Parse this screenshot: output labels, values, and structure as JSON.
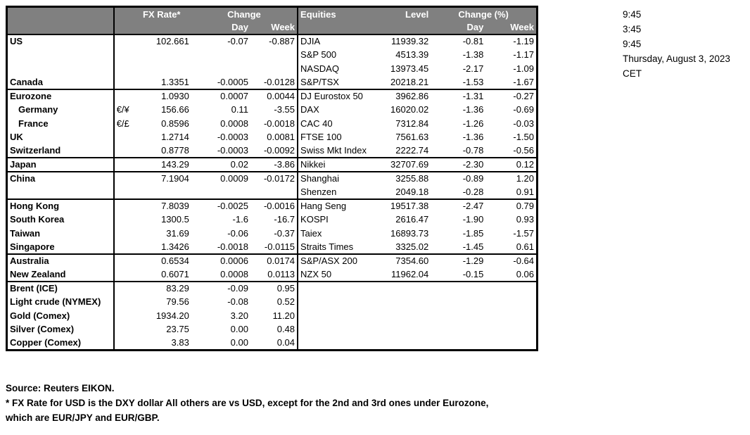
{
  "table": {
    "fx_header": {
      "rate": "FX Rate*",
      "change": "Change",
      "day": "Day",
      "week": "Week"
    },
    "eq_header": {
      "title": "Equities",
      "level": "Level",
      "change": "Change (%)",
      "day": "Day",
      "week": "Week"
    },
    "rows": [
      {
        "label": "US",
        "indent": false,
        "pair": "",
        "rate": "102.661",
        "day": "-0.07",
        "week": "-0.887",
        "eq": "DJIA",
        "level": "11939.32",
        "eq_day": "-0.81",
        "eq_week": "-1.19",
        "section_start": false
      },
      {
        "label": "",
        "indent": false,
        "pair": "",
        "rate": "",
        "day": "",
        "week": "",
        "eq": "S&P 500",
        "level": "4513.39",
        "eq_day": "-1.38",
        "eq_week": "-1.17",
        "section_start": false
      },
      {
        "label": "",
        "indent": false,
        "pair": "",
        "rate": "",
        "day": "",
        "week": "",
        "eq": "NASDAQ",
        "level": "13973.45",
        "eq_day": "-2.17",
        "eq_week": "-1.09",
        "section_start": false
      },
      {
        "label": "Canada",
        "indent": false,
        "pair": "",
        "rate": "1.3351",
        "day": "-0.0005",
        "week": "-0.0128",
        "eq": "S&P/TSX",
        "level": "20218.21",
        "eq_day": "-1.53",
        "eq_week": "-1.67",
        "section_start": false
      },
      {
        "label": "Eurozone",
        "indent": false,
        "pair": "",
        "rate": "1.0930",
        "day": "0.0007",
        "week": "0.0044",
        "eq": "DJ Eurostox 50",
        "level": "3962.86",
        "eq_day": "-1.31",
        "eq_week": "-0.27",
        "section_start": true
      },
      {
        "label": "Germany",
        "indent": true,
        "pair": "€/¥",
        "rate": "156.66",
        "day": "0.11",
        "week": "-3.55",
        "eq": "DAX",
        "level": "16020.02",
        "eq_day": "-1.36",
        "eq_week": "-0.69",
        "section_start": false
      },
      {
        "label": "France",
        "indent": true,
        "pair": "€/£",
        "rate": "0.8596",
        "day": "0.0008",
        "week": "-0.0018",
        "eq": "CAC 40",
        "level": "7312.84",
        "eq_day": "-1.26",
        "eq_week": "-0.03",
        "section_start": false
      },
      {
        "label": "UK",
        "indent": false,
        "pair": "",
        "rate": "1.2714",
        "day": "-0.0003",
        "week": "0.0081",
        "eq": "FTSE 100",
        "level": "7561.63",
        "eq_day": "-1.36",
        "eq_week": "-1.50",
        "section_start": false
      },
      {
        "label": "Switzerland",
        "indent": false,
        "pair": "",
        "rate": "0.8778",
        "day": "-0.0003",
        "week": "-0.0092",
        "eq": "Swiss Mkt Index",
        "level": "2222.74",
        "eq_day": "-0.78",
        "eq_week": "-0.56",
        "section_start": false
      },
      {
        "label": "Japan",
        "indent": false,
        "pair": "",
        "rate": "143.29",
        "day": "0.02",
        "week": "-3.86",
        "eq": "Nikkei",
        "level": "32707.69",
        "eq_day": "-2.30",
        "eq_week": "0.12",
        "section_start": true
      },
      {
        "label": "China",
        "indent": false,
        "pair": "",
        "rate": "7.1904",
        "day": "0.0009",
        "week": "-0.0172",
        "eq": "Shanghai",
        "level": "3255.88",
        "eq_day": "-0.89",
        "eq_week": "1.20",
        "section_start": true
      },
      {
        "label": "",
        "indent": false,
        "pair": "",
        "rate": "",
        "day": "",
        "week": "",
        "eq": "Shenzen",
        "level": "2049.18",
        "eq_day": "-0.28",
        "eq_week": "0.91",
        "section_start": false
      },
      {
        "label": "Hong Kong",
        "indent": false,
        "pair": "",
        "rate": "7.8039",
        "day": "-0.0025",
        "week": "-0.0016",
        "eq": "Hang Seng",
        "level": "19517.38",
        "eq_day": "-2.47",
        "eq_week": "0.79",
        "section_start": true
      },
      {
        "label": "South Korea",
        "indent": false,
        "pair": "",
        "rate": "1300.5",
        "day": "-1.6",
        "week": "-16.7",
        "eq": "KOSPI",
        "level": "2616.47",
        "eq_day": "-1.90",
        "eq_week": "0.93",
        "section_start": false
      },
      {
        "label": "Taiwan",
        "indent": false,
        "pair": "",
        "rate": "31.69",
        "day": "-0.06",
        "week": "-0.37",
        "eq": "Taiex",
        "level": "16893.73",
        "eq_day": "-1.85",
        "eq_week": "-1.57",
        "section_start": false
      },
      {
        "label": "Singapore",
        "indent": false,
        "pair": "",
        "rate": "1.3426",
        "day": "-0.0018",
        "week": "-0.0115",
        "eq": "Straits Times",
        "level": "3325.02",
        "eq_day": "-1.45",
        "eq_week": "0.61",
        "section_start": false
      },
      {
        "label": "Australia",
        "indent": false,
        "pair": "",
        "rate": "0.6534",
        "day": "0.0006",
        "week": "0.0174",
        "eq": "S&P/ASX  200",
        "level": "7354.60",
        "eq_day": "-1.29",
        "eq_week": "-0.64",
        "section_start": true
      },
      {
        "label": "New Zealand",
        "indent": false,
        "pair": "",
        "rate": "0.6071",
        "day": "0.0008",
        "week": "0.0113",
        "eq": "NZX 50",
        "level": "11962.04",
        "eq_day": "-0.15",
        "eq_week": "0.06",
        "section_start": false
      },
      {
        "label": "Brent (ICE)",
        "indent": false,
        "pair": "",
        "rate": "83.29",
        "day": "-0.09",
        "week": "0.95",
        "eq": "",
        "level": "",
        "eq_day": "",
        "eq_week": "",
        "section_start": true
      },
      {
        "label": "Light crude (NYMEX)",
        "indent": false,
        "pair": "",
        "rate": "79.56",
        "day": "-0.08",
        "week": "0.52",
        "eq": "",
        "level": "",
        "eq_day": "",
        "eq_week": "",
        "section_start": false
      },
      {
        "label": "Gold (Comex)",
        "indent": false,
        "pair": "",
        "rate": "1934.20",
        "day": "3.20",
        "week": "11.20",
        "eq": "",
        "level": "",
        "eq_day": "",
        "eq_week": "",
        "section_start": false
      },
      {
        "label": "Silver (Comex)",
        "indent": false,
        "pair": "",
        "rate": "23.75",
        "day": "0.00",
        "week": "0.48",
        "eq": "",
        "level": "",
        "eq_day": "",
        "eq_week": "",
        "section_start": false
      },
      {
        "label": "Copper (Comex)",
        "indent": false,
        "pair": "",
        "rate": "3.83",
        "day": "0.00",
        "week": "0.04",
        "eq": "",
        "level": "",
        "eq_day": "",
        "eq_week": "",
        "section_start": false
      }
    ]
  },
  "timestamps": {
    "lines": [
      "9:45",
      "3:45",
      "9:45",
      "Thursday, August 3, 2023",
      "CET"
    ]
  },
  "footer": {
    "lines": [
      "Source:  Reuters EIKON.",
      "* FX Rate for USD is the DXY dollar  All others are vs USD, except for the 2nd and 3rd ones under Eurozone,",
      "which are EUR/JPY and EUR/GBP."
    ]
  },
  "colors": {
    "header_bg": "#808080",
    "header_text": "#ffffff",
    "border": "#000000",
    "text": "#000000",
    "background": "#ffffff"
  }
}
